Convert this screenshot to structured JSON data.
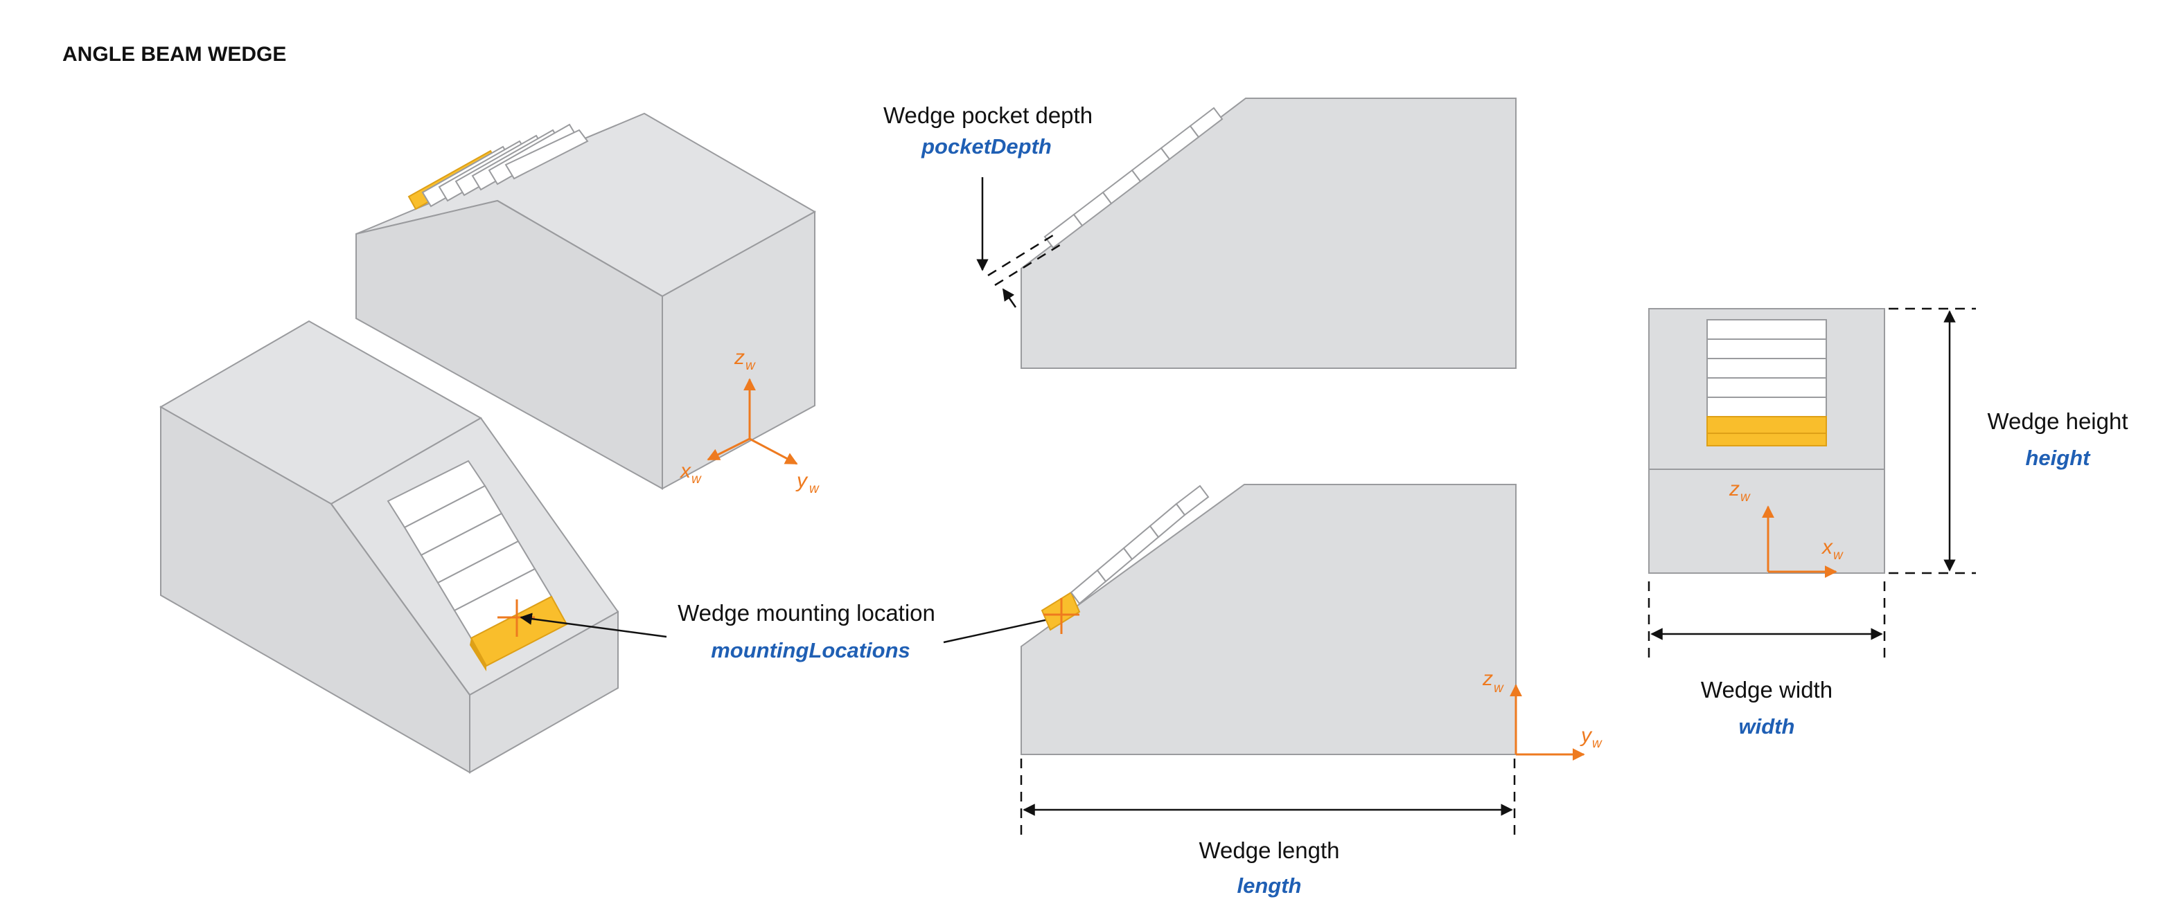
{
  "title": "ANGLE BEAM WEDGE",
  "labels": {
    "pocket_depth": {
      "text": "Wedge pocket depth",
      "param": "pocketDepth"
    },
    "mounting": {
      "text": "Wedge mounting location",
      "param": "mountingLocations"
    },
    "length": {
      "text": "Wedge length",
      "param": "length"
    },
    "width": {
      "text": "Wedge width",
      "param": "width"
    },
    "height": {
      "text": "Wedge height",
      "param": "height"
    }
  },
  "axes": {
    "z": "z",
    "y": "y",
    "x": "x",
    "sub": "w"
  },
  "colors": {
    "wedge_body": "#dcdddf",
    "active_element": "#f9be2c",
    "parameter_text": "#1f5fb4",
    "axis": "#ee7a1f"
  }
}
